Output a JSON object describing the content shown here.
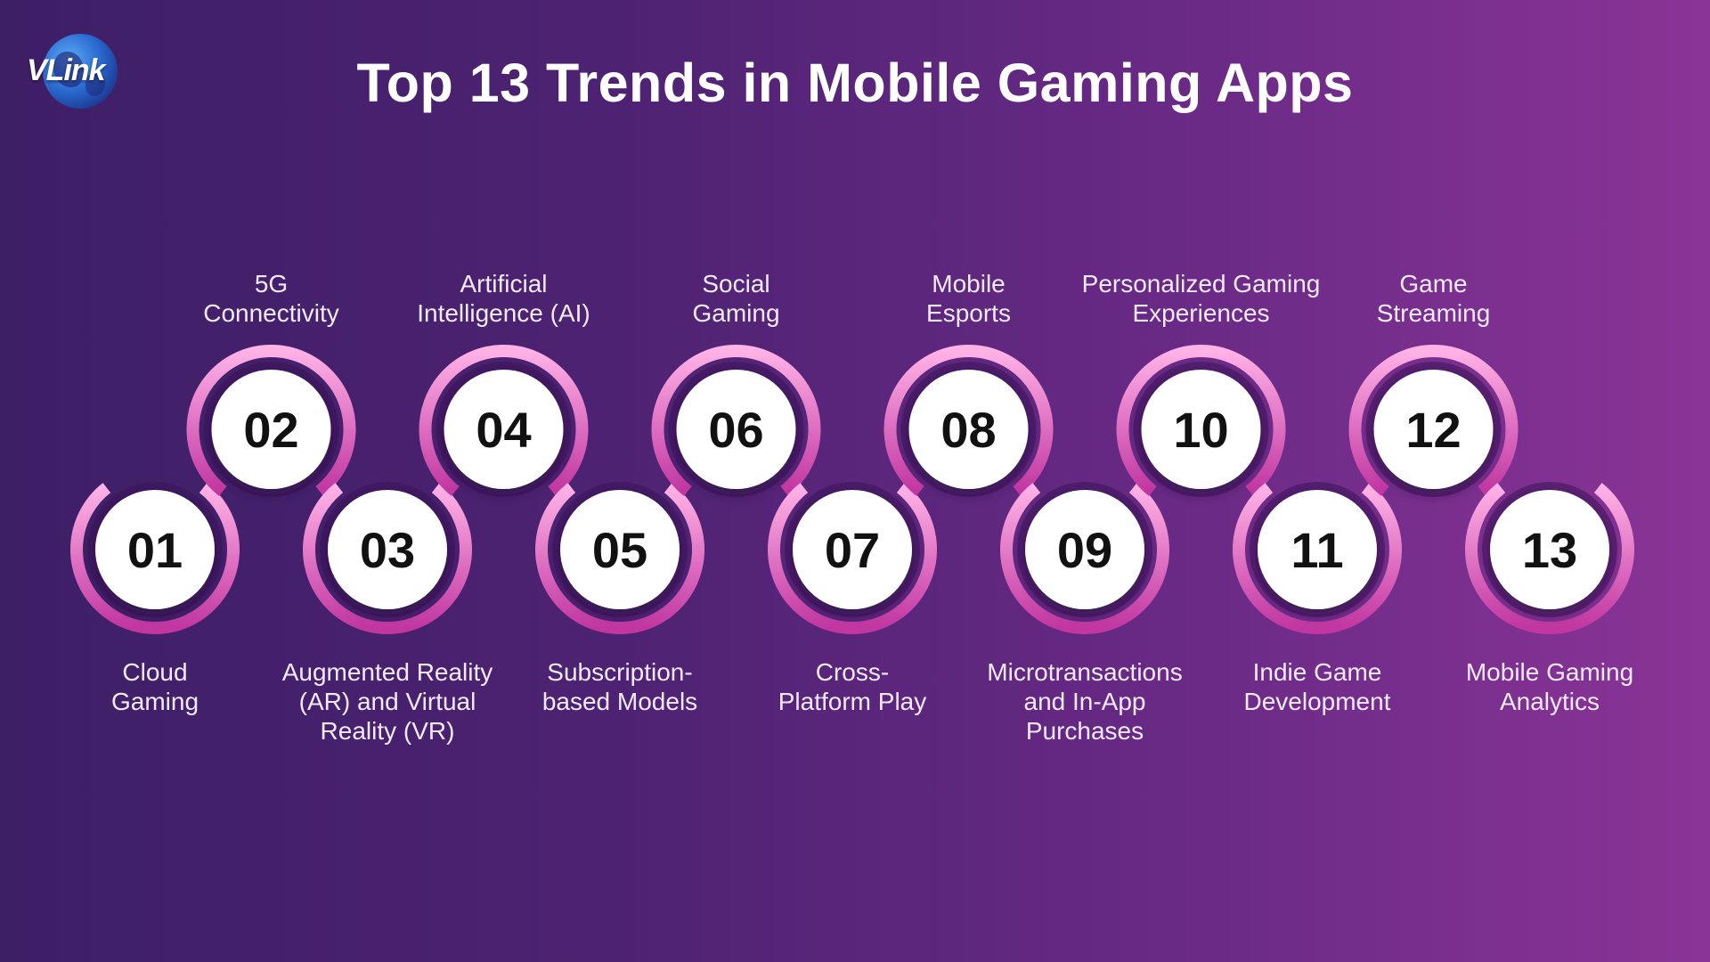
{
  "logo": {
    "text": "VLink",
    "icon": "globe-icon"
  },
  "title": "Top 13 Trends in Mobile Gaming Apps",
  "colors": {
    "ring_start": "#ffb2e6",
    "ring_end": "#c236a2",
    "circle": "#ffffff",
    "number": "#111111"
  },
  "trends": [
    {
      "number": "01",
      "label_lines": [
        "Cloud",
        "Gaming"
      ]
    },
    {
      "number": "02",
      "label_lines": [
        "5G",
        "Connectivity"
      ]
    },
    {
      "number": "03",
      "label_lines": [
        "Augmented Reality",
        "(AR) and Virtual",
        "Reality (VR)"
      ]
    },
    {
      "number": "04",
      "label_lines": [
        "Artificial",
        "Intelligence (AI)"
      ]
    },
    {
      "number": "05",
      "label_lines": [
        "Subscription-",
        "based Models"
      ]
    },
    {
      "number": "06",
      "label_lines": [
        "Social",
        "Gaming"
      ]
    },
    {
      "number": "07",
      "label_lines": [
        "Cross-",
        "Platform Play"
      ]
    },
    {
      "number": "08",
      "label_lines": [
        "Mobile",
        "Esports"
      ]
    },
    {
      "number": "09",
      "label_lines": [
        "Microtransactions",
        "and In-App",
        "Purchases"
      ]
    },
    {
      "number": "10",
      "label_lines": [
        "Personalized Gaming",
        "Experiences"
      ]
    },
    {
      "number": "11",
      "label_lines": [
        "Indie Game",
        "Development"
      ]
    },
    {
      "number": "12",
      "label_lines": [
        "Game",
        "Streaming"
      ]
    },
    {
      "number": "13",
      "label_lines": [
        "Mobile Gaming",
        "Analytics"
      ]
    }
  ]
}
